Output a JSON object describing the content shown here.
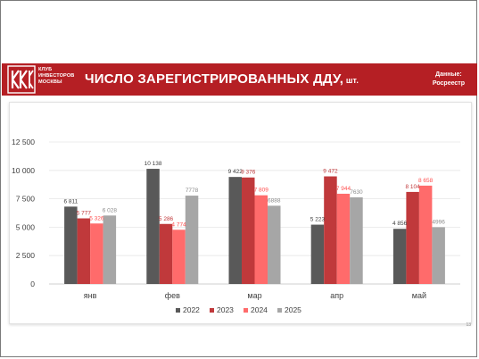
{
  "banner": {
    "logo_lines": [
      "КЛУБ",
      "ИНВЕСТОРОВ",
      "МОСКВЫ"
    ],
    "title": "ЧИСЛО ЗАРЕГИСТРИРОВАННЫХ ДДУ,",
    "unit": " шт.",
    "source_label": "Данные:",
    "source_value": "Росреестр",
    "background_color": "#b51f24"
  },
  "page_number": "13",
  "chart_data": {
    "type": "bar",
    "categories": [
      "янв",
      "фев",
      "мар",
      "апр",
      "май"
    ],
    "ylim": [
      0,
      12500
    ],
    "yticks": [
      0,
      2500,
      5000,
      7500,
      10000,
      12500
    ],
    "ytick_labels": [
      "0",
      "2 500",
      "5 000",
      "7 500",
      "10 000",
      "12 500"
    ],
    "grid": true,
    "legend_position": "bottom",
    "series": [
      {
        "name": "2022",
        "color": "#595959",
        "label_color": "#404040",
        "values": [
          6811,
          10138,
          9422,
          5223,
          4856
        ],
        "labels": [
          "6 811",
          "10 138",
          "9 422",
          "5 223",
          "4 856"
        ]
      },
      {
        "name": "2023",
        "color": "#c0393b",
        "label_color": "#c0393b",
        "values": [
          5777,
          5286,
          9376,
          9472,
          8104
        ],
        "labels": [
          "5 777",
          "5 286",
          "9 376",
          "9 472",
          "8 104"
        ]
      },
      {
        "name": "2024",
        "color": "#ff6b6b",
        "label_color": "#ff5050",
        "values": [
          5326,
          4774,
          7809,
          7944,
          8658
        ],
        "labels": [
          "5 326",
          "4 774",
          "7 809",
          "7 944",
          "8 658"
        ]
      },
      {
        "name": "2025",
        "color": "#a6a6a6",
        "label_color": "#8c8c8c",
        "values": [
          6028,
          7778,
          6888,
          7630,
          4996
        ],
        "labels": [
          "6 028",
          "7778",
          "6888",
          "7630",
          "4996"
        ]
      }
    ]
  }
}
